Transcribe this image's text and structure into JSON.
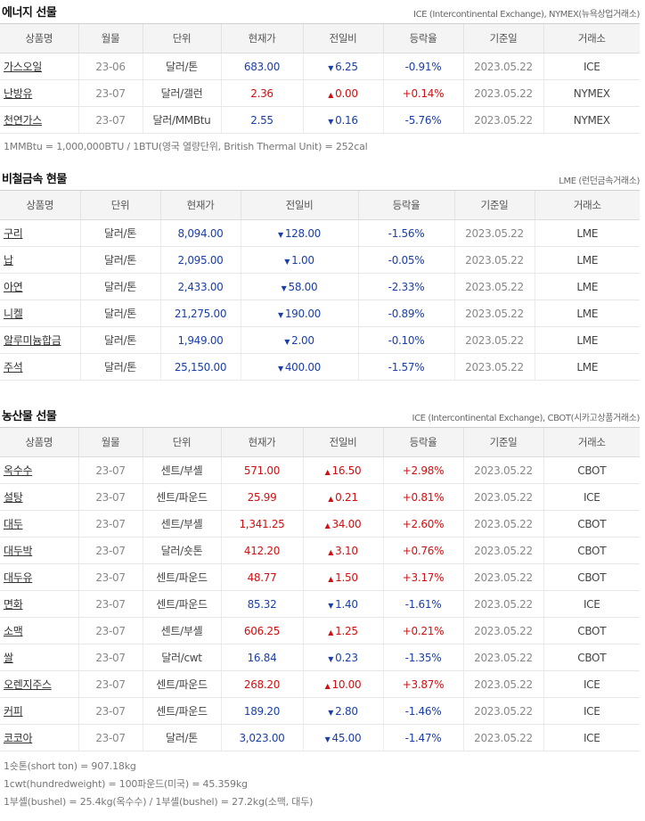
{
  "energy": {
    "title": "에너지 선물",
    "source": "ICE (Intercontinental Exchange), NYMEX(뉴욕상업거래소)",
    "headers": [
      "상품명",
      "월물",
      "단위",
      "현재가",
      "전일비",
      "등락율",
      "기준일",
      "거래소"
    ],
    "rows": [
      {
        "name": "가스오일",
        "month": "23-06",
        "unit": "달러/톤",
        "price": "683.00",
        "dir": "down",
        "change": "6.25",
        "rate": "-0.91%",
        "date": "2023.05.22",
        "exchange": "ICE"
      },
      {
        "name": "난방유",
        "month": "23-07",
        "unit": "달러/갤런",
        "price": "2.36",
        "dir": "up",
        "change": "0.00",
        "rate": "+0.14%",
        "date": "2023.05.22",
        "exchange": "NYMEX"
      },
      {
        "name": "천연가스",
        "month": "23-07",
        "unit": "달러/MMBtu",
        "price": "2.55",
        "dir": "down",
        "change": "0.16",
        "rate": "-5.76%",
        "date": "2023.05.22",
        "exchange": "NYMEX"
      }
    ],
    "note": "1MMBtu = 1,000,000BTU / 1BTU(영국 열량단위, British Thermal Unit) = 252cal"
  },
  "metals": {
    "title": "비철금속 현물",
    "source": "LME (런던금속거래소)",
    "headers": [
      "상품명",
      "단위",
      "현재가",
      "전일비",
      "등락율",
      "기준일",
      "거래소"
    ],
    "rows": [
      {
        "name": "구리",
        "unit": "달러/톤",
        "price": "8,094.00",
        "dir": "down",
        "change": "128.00",
        "rate": "-1.56%",
        "date": "2023.05.22",
        "exchange": "LME"
      },
      {
        "name": "납",
        "unit": "달러/톤",
        "price": "2,095.00",
        "dir": "down",
        "change": "1.00",
        "rate": "-0.05%",
        "date": "2023.05.22",
        "exchange": "LME"
      },
      {
        "name": "아연",
        "unit": "달러/톤",
        "price": "2,433.00",
        "dir": "down",
        "change": "58.00",
        "rate": "-2.33%",
        "date": "2023.05.22",
        "exchange": "LME"
      },
      {
        "name": "니켈",
        "unit": "달러/톤",
        "price": "21,275.00",
        "dir": "down",
        "change": "190.00",
        "rate": "-0.89%",
        "date": "2023.05.22",
        "exchange": "LME"
      },
      {
        "name": "알루미늄합금",
        "unit": "달러/톤",
        "price": "1,949.00",
        "dir": "down",
        "change": "2.00",
        "rate": "-0.10%",
        "date": "2023.05.22",
        "exchange": "LME"
      },
      {
        "name": "주석",
        "unit": "달러/톤",
        "price": "25,150.00",
        "dir": "down",
        "change": "400.00",
        "rate": "-1.57%",
        "date": "2023.05.22",
        "exchange": "LME"
      }
    ]
  },
  "agri": {
    "title": "농산물 선물",
    "source": "ICE (Intercontinental Exchange), CBOT(시카고상품거래소)",
    "headers": [
      "상품명",
      "월물",
      "단위",
      "현재가",
      "전일비",
      "등락율",
      "기준일",
      "거래소"
    ],
    "rows": [
      {
        "name": "옥수수",
        "month": "23-07",
        "unit": "센트/부셸",
        "price": "571.00",
        "dir": "up",
        "change": "16.50",
        "rate": "+2.98%",
        "date": "2023.05.22",
        "exchange": "CBOT"
      },
      {
        "name": "설탕",
        "month": "23-07",
        "unit": "센트/파운드",
        "price": "25.99",
        "dir": "up",
        "change": "0.21",
        "rate": "+0.81%",
        "date": "2023.05.22",
        "exchange": "ICE"
      },
      {
        "name": "대두",
        "month": "23-07",
        "unit": "센트/부셸",
        "price": "1,341.25",
        "dir": "up",
        "change": "34.00",
        "rate": "+2.60%",
        "date": "2023.05.22",
        "exchange": "CBOT"
      },
      {
        "name": "대두박",
        "month": "23-07",
        "unit": "달러/숏톤",
        "price": "412.20",
        "dir": "up",
        "change": "3.10",
        "rate": "+0.76%",
        "date": "2023.05.22",
        "exchange": "CBOT"
      },
      {
        "name": "대두유",
        "month": "23-07",
        "unit": "센트/파운드",
        "price": "48.77",
        "dir": "up",
        "change": "1.50",
        "rate": "+3.17%",
        "date": "2023.05.22",
        "exchange": "CBOT"
      },
      {
        "name": "면화",
        "month": "23-07",
        "unit": "센트/파운드",
        "price": "85.32",
        "dir": "down",
        "change": "1.40",
        "rate": "-1.61%",
        "date": "2023.05.22",
        "exchange": "ICE"
      },
      {
        "name": "소맥",
        "month": "23-07",
        "unit": "센트/부셸",
        "price": "606.25",
        "dir": "up",
        "change": "1.25",
        "rate": "+0.21%",
        "date": "2023.05.22",
        "exchange": "CBOT"
      },
      {
        "name": "쌀",
        "month": "23-07",
        "unit": "달러/cwt",
        "price": "16.84",
        "dir": "down",
        "change": "0.23",
        "rate": "-1.35%",
        "date": "2023.05.22",
        "exchange": "CBOT"
      },
      {
        "name": "오렌지주스",
        "month": "23-07",
        "unit": "센트/파운드",
        "price": "268.20",
        "dir": "up",
        "change": "10.00",
        "rate": "+3.87%",
        "date": "2023.05.22",
        "exchange": "ICE"
      },
      {
        "name": "커피",
        "month": "23-07",
        "unit": "센트/파운드",
        "price": "189.20",
        "dir": "down",
        "change": "2.80",
        "rate": "-1.46%",
        "date": "2023.05.22",
        "exchange": "ICE"
      },
      {
        "name": "코코아",
        "month": "23-07",
        "unit": "달러/톤",
        "price": "3,023.00",
        "dir": "down",
        "change": "45.00",
        "rate": "-1.47%",
        "date": "2023.05.22",
        "exchange": "ICE"
      }
    ],
    "notes": [
      "1숏톤(short ton) = 907.18kg",
      "1cwt(hundredweight) = 100파운드(미국) = 45.359kg",
      "1부셸(bushel) = 25.4kg(옥수수) / 1부셸(bushel) = 27.2kg(소맥, 대두)"
    ]
  },
  "colors": {
    "up": "#d01010",
    "down": "#1a3fa8"
  },
  "icons": {
    "up": "triangle-up-icon",
    "down": "triangle-down-icon"
  }
}
